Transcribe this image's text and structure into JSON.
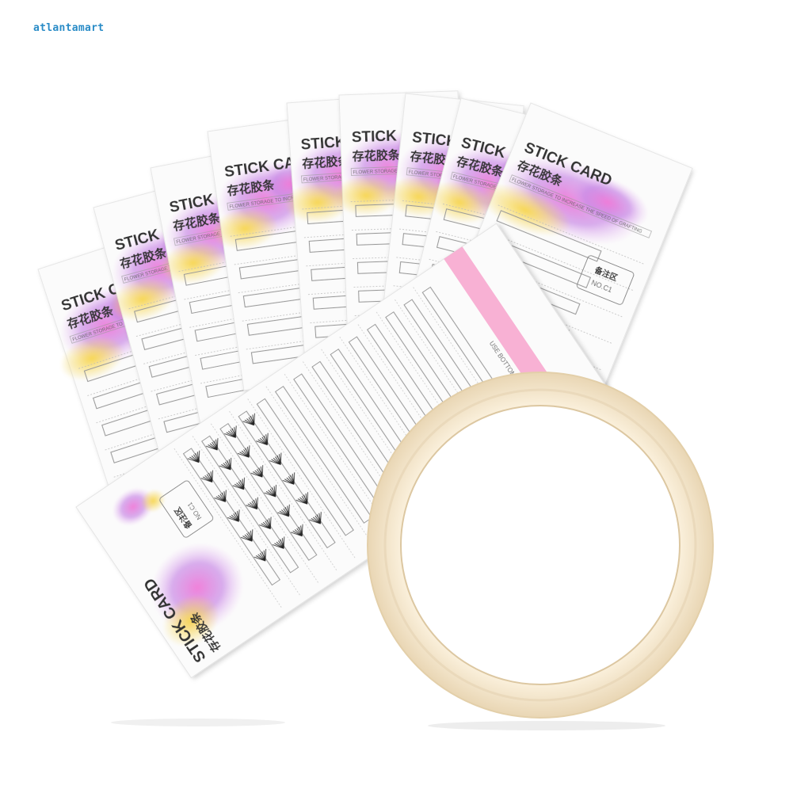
{
  "watermark": "atlantamart",
  "card": {
    "title": "STICK CARD",
    "subtitle": "存花胶条",
    "tagline": "FLOWER STORAGE TO INCREASE THE SPEED OF GRAFTING",
    "note_label": "备注区",
    "note_code": "NO.C1",
    "strip_text": "USE BOTTOMLINE"
  },
  "colors": {
    "bloom_pink": "#e96bd0",
    "bloom_purple": "#b27ae8",
    "bloom_yellow": "#f6d04a",
    "tape_pink": "#f7a8cf",
    "tape_roll": "#f3e6cd",
    "text": "#333333"
  },
  "icons": [
    "watercolor-blossom-icon",
    "tape-roll-icon",
    "lash-cluster-icon"
  ]
}
